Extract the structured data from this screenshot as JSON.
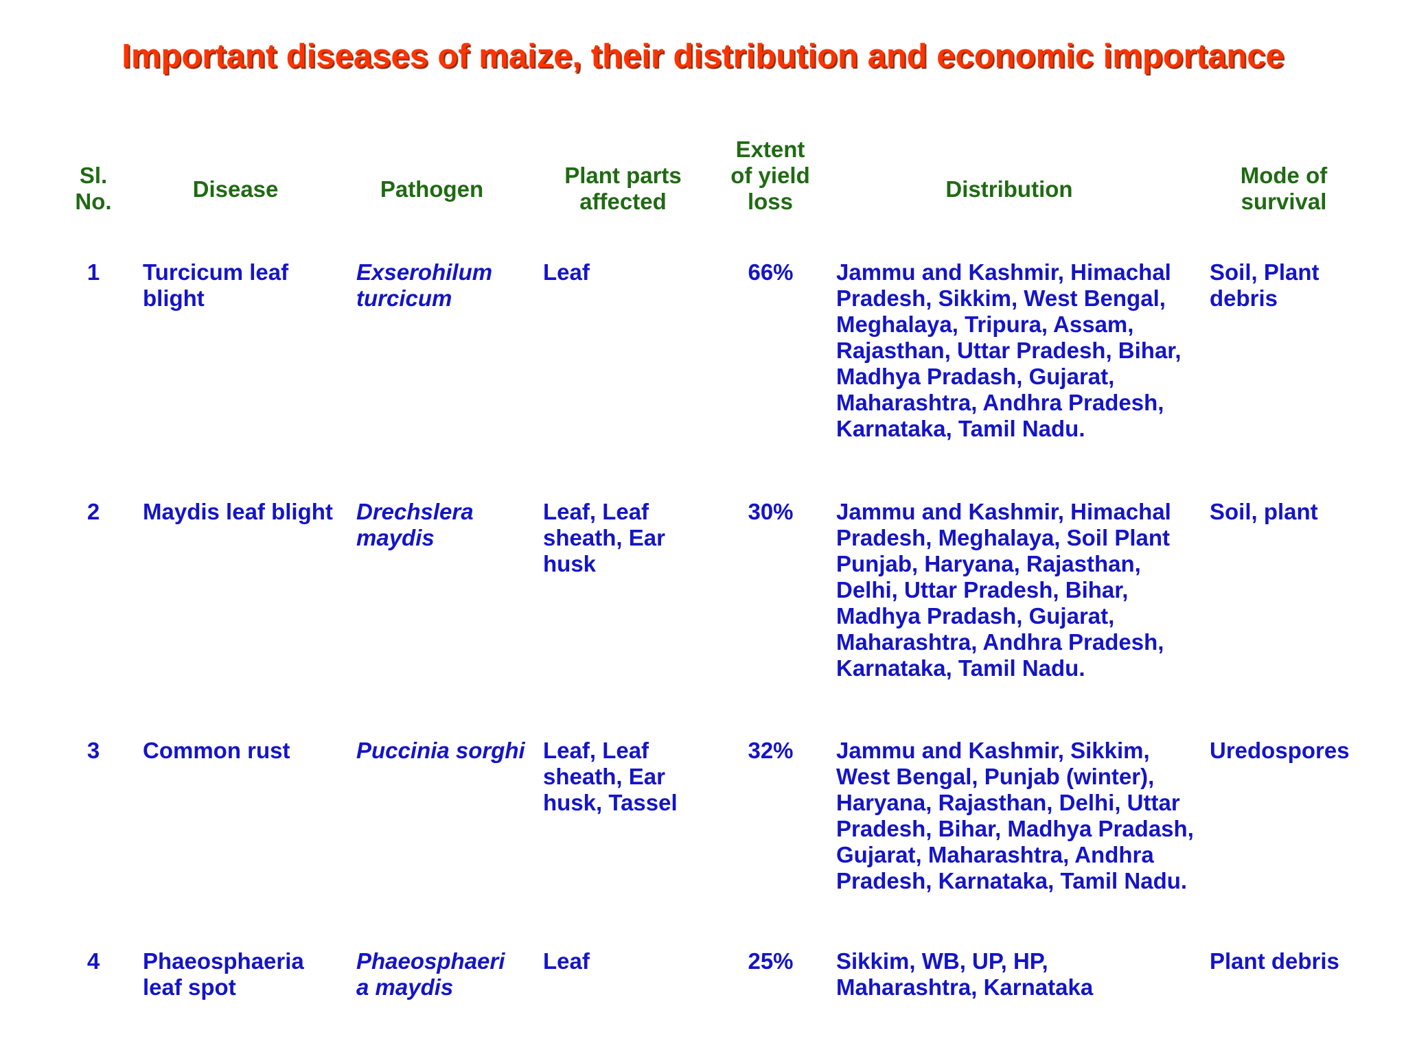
{
  "title": "Important diseases of maize, their distribution and economic importance",
  "headers": {
    "sl_no": "Sl. No.",
    "disease": "Disease",
    "pathogen": "Pathogen",
    "plant_parts": "Plant parts affected",
    "yield_loss": "Extent of yield loss",
    "distribution": "Distribution",
    "survival": "Mode of survival"
  },
  "rows": [
    {
      "no": "1",
      "disease": "Turcicum leaf blight",
      "pathogen": "Exserohilum turcicum",
      "parts": "Leaf",
      "loss": "66%",
      "distribution": "Jammu and Kashmir, Himachal Pradesh, Sikkim, West Bengal, Meghalaya, Tripura, Assam, Rajasthan, Uttar Pradesh, Bihar, Madhya Pradash, Gujarat, Maharashtra, Andhra Pradesh, Karnataka, Tamil Nadu.",
      "survival": "Soil, Plant debris"
    },
    {
      "no": "2",
      "disease": "Maydis leaf blight",
      "pathogen": "Drechslera maydis",
      "parts": "Leaf, Leaf sheath, Ear husk",
      "loss": "30%",
      "distribution": "Jammu and Kashmir, Himachal Pradesh, Meghalaya, Soil Plant Punjab, Haryana, Rajasthan, Delhi, Uttar Pradesh, Bihar, Madhya Pradash, Gujarat, Maharashtra, Andhra Pradesh, Karnataka, Tamil Nadu.",
      "survival": "Soil, plant"
    },
    {
      "no": "3",
      "disease": "Common rust",
      "pathogen": "Puccinia sorghi",
      "parts": "Leaf, Leaf sheath, Ear husk, Tassel",
      "loss": "32%",
      "distribution": "Jammu and Kashmir, Sikkim, West Bengal, Punjab (winter), Haryana, Rajasthan, Delhi, Uttar Pradesh, Bihar, Madhya Pradash, Gujarat, Maharashtra, Andhra Pradesh, Karnataka, Tamil Nadu.",
      "survival": "Uredospores"
    },
    {
      "no": "4",
      "disease": "Phaeosphaeria leaf spot",
      "pathogen": "Phaeosphaeria maydis",
      "parts": "Leaf",
      "loss": "25%",
      "distribution": "Sikkim, WB, UP, HP, Maharashtra, Karnataka",
      "survival": "Plant debris"
    }
  ]
}
